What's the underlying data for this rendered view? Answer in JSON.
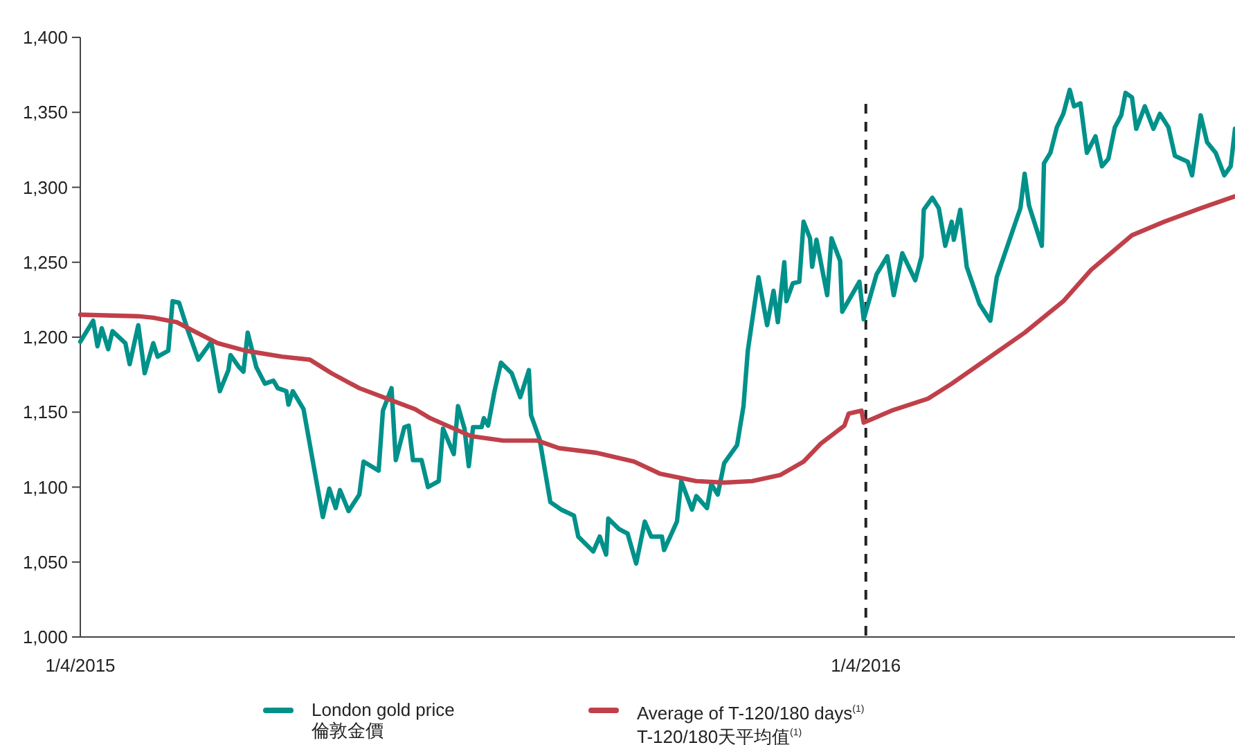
{
  "chart_data": {
    "type": "line",
    "xlim": [
      "2015-04-01",
      "2016-09-20"
    ],
    "xticks": [
      {
        "value": "2015-04-01",
        "label": "1/4/2015"
      },
      {
        "value": "2016-04-01",
        "label": "1/4/2016"
      }
    ],
    "ylim": [
      1000,
      1400
    ],
    "yticks": [
      {
        "value": 1000,
        "label": "1,000"
      },
      {
        "value": 1050,
        "label": "1,050"
      },
      {
        "value": 1100,
        "label": "1,100"
      },
      {
        "value": 1150,
        "label": "1,150"
      },
      {
        "value": 1200,
        "label": "1,200"
      },
      {
        "value": 1250,
        "label": "1,250"
      },
      {
        "value": 1300,
        "label": "1,300"
      },
      {
        "value": 1350,
        "label": "1,350"
      },
      {
        "value": 1400,
        "label": "1,400"
      }
    ],
    "grid": false,
    "legend": "bottom",
    "ref_lines": [
      {
        "axis": "x",
        "value": "2016-04-01",
        "color": "#222222",
        "line_style": "dashed"
      }
    ],
    "series": [
      {
        "name": "London gold price\n倫敦金價",
        "color": "#00918a",
        "x": [
          "2015-04-01",
          "2015-04-07",
          "2015-04-09",
          "2015-04-11",
          "2015-04-14",
          "2015-04-16",
          "2015-04-22",
          "2015-04-24",
          "2015-04-28",
          "2015-05-01",
          "2015-05-05",
          "2015-05-07",
          "2015-05-12",
          "2015-05-14",
          "2015-05-17",
          "2015-05-21",
          "2015-05-26",
          "2015-06-01",
          "2015-06-05",
          "2015-06-09",
          "2015-06-10",
          "2015-06-14",
          "2015-06-16",
          "2015-06-18",
          "2015-06-22",
          "2015-06-26",
          "2015-06-30",
          "2015-07-02",
          "2015-07-06",
          "2015-07-07",
          "2015-07-09",
          "2015-07-14",
          "2015-07-20",
          "2015-07-23",
          "2015-07-26",
          "2015-07-29",
          "2015-07-31",
          "2015-08-04",
          "2015-08-09",
          "2015-08-11",
          "2015-08-18",
          "2015-08-20",
          "2015-08-24",
          "2015-08-26",
          "2015-08-30",
          "2015-09-01",
          "2015-09-03",
          "2015-09-07",
          "2015-09-10",
          "2015-09-15",
          "2015-09-17",
          "2015-09-22",
          "2015-09-24",
          "2015-09-27",
          "2015-09-29",
          "2015-10-01",
          "2015-10-05",
          "2015-10-06",
          "2015-10-08",
          "2015-10-11",
          "2015-10-14",
          "2015-10-19",
          "2015-10-23",
          "2015-10-27",
          "2015-10-28",
          "2015-11-01",
          "2015-11-06",
          "2015-11-11",
          "2015-11-17",
          "2015-11-19",
          "2015-11-26",
          "2015-11-29",
          "2015-12-02",
          "2015-12-03",
          "2015-12-08",
          "2015-12-12",
          "2015-12-16",
          "2015-12-20",
          "2015-12-23",
          "2015-12-28",
          "2015-12-29",
          "2016-01-04",
          "2016-01-06",
          "2016-01-11",
          "2016-01-13",
          "2016-01-18",
          "2016-01-20",
          "2016-01-23",
          "2016-01-26",
          "2016-02-01",
          "2016-02-04",
          "2016-02-06",
          "2016-02-11",
          "2016-02-15",
          "2016-02-18",
          "2016-02-20",
          "2016-02-23",
          "2016-02-24",
          "2016-02-27",
          "2016-03-01",
          "2016-03-03",
          "2016-03-06",
          "2016-03-07",
          "2016-03-09",
          "2016-03-14",
          "2016-03-16",
          "2016-03-20",
          "2016-03-21",
          "2016-03-29",
          "2016-03-31",
          "2016-04-06",
          "2016-04-11",
          "2016-04-14",
          "2016-04-18",
          "2016-04-24",
          "2016-04-27",
          "2016-04-28",
          "2016-05-02",
          "2016-05-05",
          "2016-05-08",
          "2016-05-11",
          "2016-05-12",
          "2016-05-15",
          "2016-05-18",
          "2016-05-24",
          "2016-05-29",
          "2016-06-01",
          "2016-06-06",
          "2016-06-12",
          "2016-06-14",
          "2016-06-16",
          "2016-06-22",
          "2016-06-23",
          "2016-06-26",
          "2016-06-29",
          "2016-07-02",
          "2016-07-05",
          "2016-07-07",
          "2016-07-10",
          "2016-07-13",
          "2016-07-17",
          "2016-07-20",
          "2016-07-23",
          "2016-07-26",
          "2016-07-29",
          "2016-07-31",
          "2016-08-03",
          "2016-08-05",
          "2016-08-09",
          "2016-08-13",
          "2016-08-16",
          "2016-08-20",
          "2016-08-23",
          "2016-08-29",
          "2016-08-31",
          "2016-09-04",
          "2016-09-07",
          "2016-09-11",
          "2016-09-15",
          "2016-09-18",
          "2016-09-20"
        ],
        "values": [
          1197,
          1211,
          1194,
          1206,
          1192,
          1204,
          1196,
          1182,
          1208,
          1176,
          1196,
          1187,
          1191,
          1224,
          1223,
          1205,
          1185,
          1197,
          1164,
          1178,
          1188,
          1180,
          1177,
          1203,
          1180,
          1169,
          1171,
          1166,
          1164,
          1155,
          1164,
          1152,
          1104,
          1080,
          1099,
          1086,
          1098,
          1084,
          1095,
          1117,
          1111,
          1151,
          1166,
          1118,
          1140,
          1141,
          1118,
          1118,
          1100,
          1104,
          1139,
          1122,
          1154,
          1139,
          1114,
          1140,
          1140,
          1146,
          1141,
          1164,
          1183,
          1176,
          1160,
          1178,
          1148,
          1132,
          1090,
          1085,
          1081,
          1067,
          1057,
          1067,
          1055,
          1079,
          1072,
          1069,
          1049,
          1077,
          1067,
          1067,
          1058,
          1077,
          1104,
          1085,
          1094,
          1086,
          1102,
          1095,
          1116,
          1128,
          1154,
          1191,
          1240,
          1208,
          1231,
          1210,
          1250,
          1224,
          1236,
          1237,
          1277,
          1266,
          1247,
          1265,
          1228,
          1266,
          1251,
          1217,
          1237,
          1212,
          1242,
          1254,
          1228,
          1256,
          1238,
          1254,
          1285,
          1293,
          1286,
          1261,
          1277,
          1265,
          1285,
          1247,
          1222,
          1211,
          1240,
          1261,
          1286,
          1309,
          1288,
          1261,
          1316,
          1323,
          1340,
          1349,
          1365,
          1354,
          1356,
          1323,
          1334,
          1314,
          1319,
          1340,
          1348,
          1363,
          1360,
          1339,
          1354,
          1339,
          1349,
          1340,
          1321,
          1317,
          1308,
          1348,
          1330,
          1323,
          1308,
          1314,
          1339
        ]
      },
      {
        "name": "Average of T-120/180 days$^{(1)}$\nT-120/180天平均值$^{(1)}$",
        "color": "#c0404a",
        "x": [
          "2015-04-01",
          "2015-04-28",
          "2015-05-05",
          "2015-05-16",
          "2015-05-24",
          "2015-06-04",
          "2015-06-17",
          "2015-07-04",
          "2015-07-17",
          "2015-07-27",
          "2015-08-09",
          "2015-08-20",
          "2015-09-04",
          "2015-09-11",
          "2015-09-30",
          "2015-10-15",
          "2015-10-31",
          "2015-11-10",
          "2015-11-27",
          "2015-12-15",
          "2015-12-27",
          "2016-01-13",
          "2016-01-26",
          "2016-02-08",
          "2016-02-21",
          "2016-03-03",
          "2016-03-11",
          "2016-03-22",
          "2016-03-24",
          "2016-03-30",
          "2016-03-31",
          "2016-04-13",
          "2016-04-30",
          "2016-05-11",
          "2016-05-28",
          "2016-06-14",
          "2016-07-02",
          "2016-07-15",
          "2016-08-03",
          "2016-08-18",
          "2016-09-04",
          "2016-09-20"
        ],
        "values": [
          1215,
          1214,
          1213,
          1210,
          1204,
          1196,
          1191,
          1187,
          1185,
          1176,
          1166,
          1160,
          1152,
          1146,
          1134,
          1131,
          1131,
          1126,
          1123,
          1117,
          1109,
          1104,
          1103,
          1104,
          1108,
          1117,
          1129,
          1141,
          1149,
          1151,
          1143,
          1151,
          1159,
          1169,
          1186,
          1203,
          1224,
          1245,
          1268,
          1277,
          1286,
          1294
        ]
      }
    ]
  }
}
